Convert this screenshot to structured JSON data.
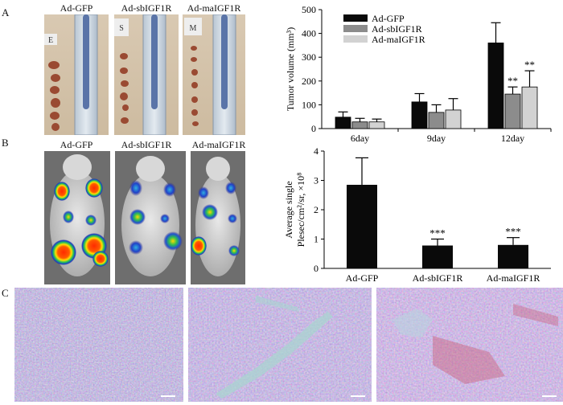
{
  "panels": {
    "a": "A",
    "b": "B",
    "c": "C"
  },
  "photo_groups": [
    "Ad-GFP",
    "Ad-sbIGF1R",
    "Ad-maIGF1R"
  ],
  "tube_tags": [
    "E",
    "S",
    "M"
  ],
  "colors": {
    "gfp": "#0a0a0a",
    "sb": "#8c8c8c",
    "ma": "#d2d2d2",
    "background": "#7f7f7f",
    "histology": "#6f5f9c"
  },
  "chart_data": [
    {
      "type": "bar",
      "title": "",
      "xlabel": "",
      "ylabel": "Tumor volume (mm³)",
      "categories": [
        "6day",
        "9day",
        "12day"
      ],
      "ylim": [
        0,
        500
      ],
      "yticks": [
        0,
        100,
        200,
        300,
        400,
        500
      ],
      "legend_position": "top-left",
      "series": [
        {
          "name": "Ad-GFP",
          "values": [
            48,
            112,
            360
          ],
          "errors": [
            22,
            35,
            85
          ],
          "annotations": [
            "",
            "",
            ""
          ]
        },
        {
          "name": "Ad-sbIGF1R",
          "values": [
            28,
            68,
            145
          ],
          "errors": [
            15,
            32,
            30
          ],
          "annotations": [
            "",
            "",
            "**"
          ]
        },
        {
          "name": "Ad-maIGF1R",
          "values": [
            28,
            78,
            175
          ],
          "errors": [
            12,
            48,
            68
          ],
          "annotations": [
            "",
            "",
            "**"
          ]
        }
      ]
    },
    {
      "type": "bar",
      "title": "",
      "xlabel": "",
      "ylabel": "Average single",
      "ylabel2": "Plesec/cm²/sr, ×10⁸",
      "categories": [
        "Ad-GFP",
        "Ad-sbIGF1R",
        "Ad-maIGF1R"
      ],
      "ylim": [
        0,
        4
      ],
      "yticks": [
        0,
        1,
        2,
        3,
        4
      ],
      "values": [
        2.85,
        0.78,
        0.8
      ],
      "errors": [
        0.92,
        0.22,
        0.25
      ],
      "annotations": [
        "",
        "***",
        "***"
      ]
    }
  ]
}
